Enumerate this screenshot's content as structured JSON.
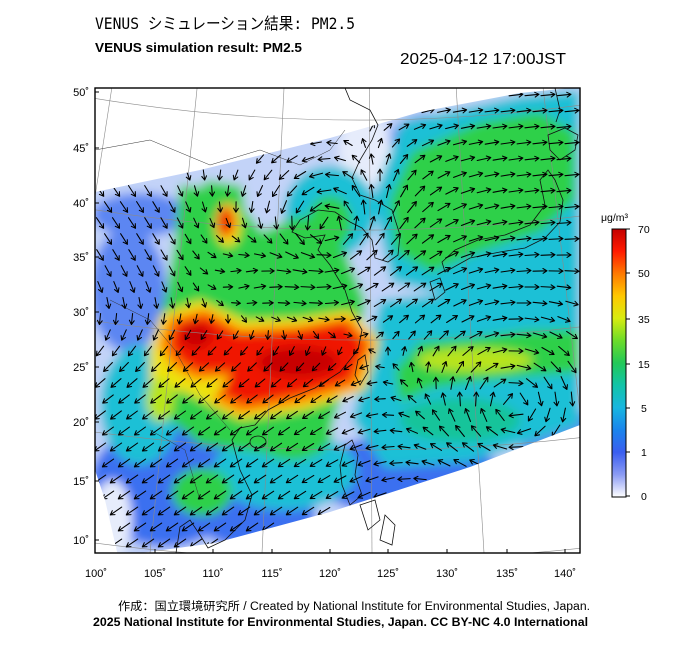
{
  "header": {
    "title_ja": "VENUS シミュレーション結果: PM2.5",
    "title_en": "VENUS simulation result: PM2.5",
    "timestamp": "2025-04-12 17:00JST"
  },
  "map": {
    "lat_labels": [
      "50˚",
      "45˚",
      "40˚",
      "35˚",
      "30˚",
      "25˚",
      "20˚",
      "15˚",
      "10˚"
    ],
    "lon_labels": [
      "100˚",
      "105˚",
      "110˚",
      "115˚",
      "120˚",
      "125˚",
      "130˚",
      "135˚",
      "140˚"
    ]
  },
  "colorbar": {
    "unit": "μg/m³",
    "ticks": [
      "70",
      "50",
      "35",
      "15",
      "5",
      "1",
      "0"
    ],
    "colors": [
      "#c40000",
      "#ff1a00",
      "#ff7a00",
      "#ffc800",
      "#d8ec10",
      "#6cdc2a",
      "#22c858",
      "#12c4a8",
      "#18b6e0",
      "#1a84ec",
      "#3a5ef0",
      "#8c9cf4",
      "#ffffff"
    ]
  },
  "footer": {
    "credit": "作成：国立環境研究所 / Created by National Institute for Environmental Studies, Japan.",
    "license": "2025 National Institute for Environmental Studies, Japan. CC BY-NC 4.0 International"
  }
}
